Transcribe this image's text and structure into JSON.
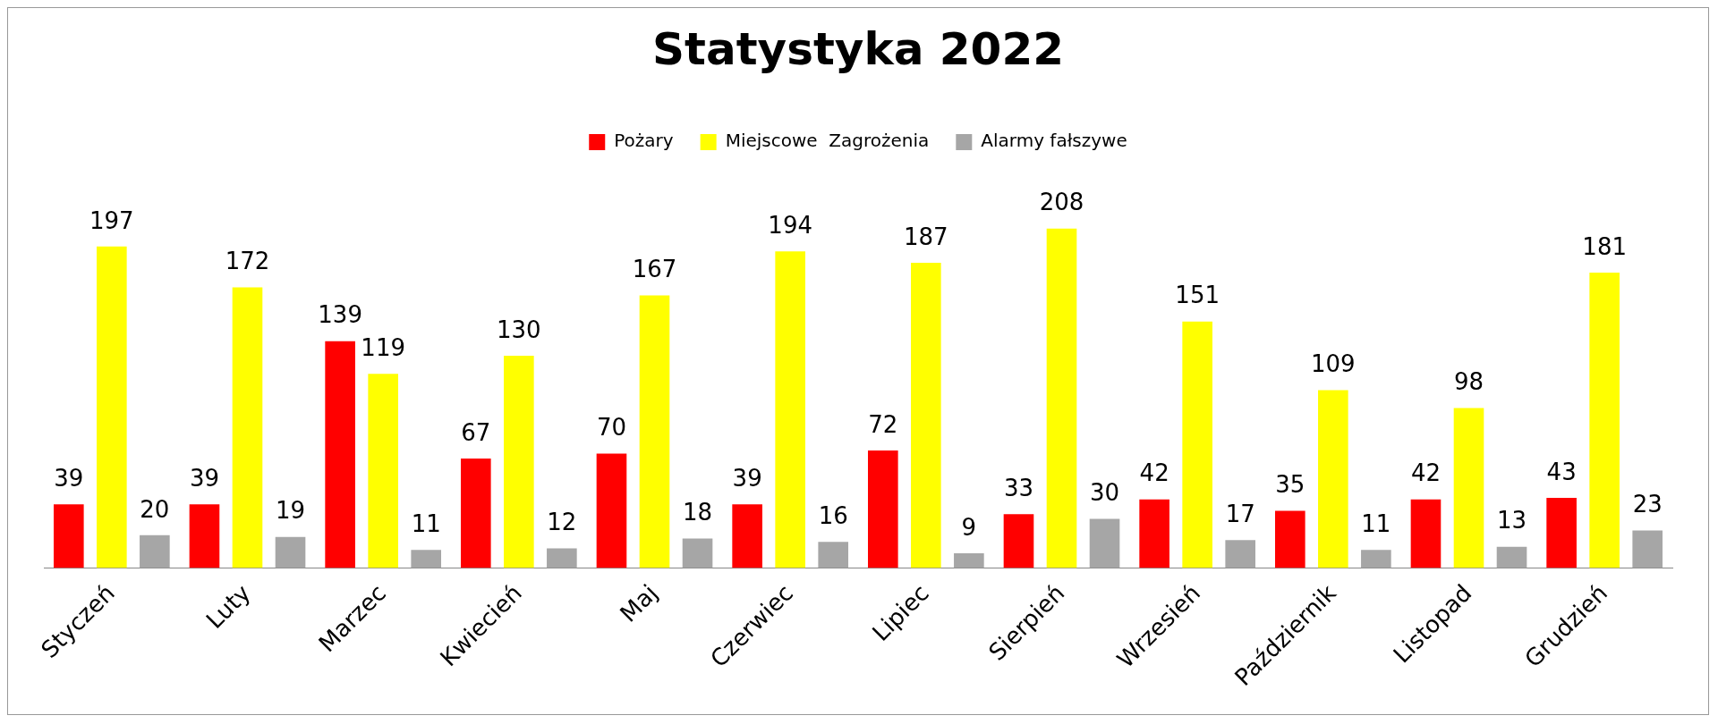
{
  "chart_data": {
    "type": "bar",
    "title": "Statystyka 2022",
    "categories": [
      "Styczeń",
      "Luty",
      "Marzec",
      "Kwiecień",
      "Maj",
      "Czerwiec",
      "Lipiec",
      "Sierpień",
      "Wrzesień",
      "Październik",
      "Listopad",
      "Grudzień"
    ],
    "series": [
      {
        "name": "Pożary",
        "color": "#ff0000",
        "values": [
          39,
          39,
          139,
          67,
          70,
          39,
          72,
          33,
          42,
          35,
          42,
          43
        ]
      },
      {
        "name": "Miejscowe  Zagrożenia",
        "color": "#ffff00",
        "values": [
          197,
          172,
          119,
          130,
          167,
          194,
          187,
          208,
          151,
          109,
          98,
          181
        ]
      },
      {
        "name": "Alarmy fałszywe",
        "color": "#a6a6a6",
        "values": [
          20,
          19,
          11,
          12,
          18,
          16,
          9,
          30,
          17,
          11,
          13,
          23
        ]
      }
    ],
    "data_labels": true,
    "legend": "top",
    "grid": false
  }
}
